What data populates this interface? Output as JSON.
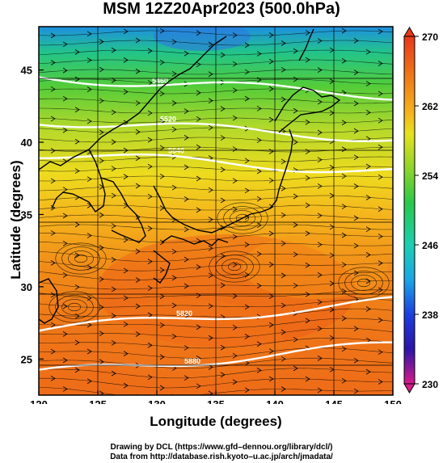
{
  "title": "MSM 12Z20Apr2023 (500.0hPa)",
  "x_axis": {
    "label": "Longitude (degrees)",
    "ticks": [
      "120",
      "125",
      "130",
      "135",
      "140",
      "145",
      "150"
    ],
    "range": [
      120,
      150
    ]
  },
  "y_axis": {
    "label": "Latitude  (degrees)",
    "ticks": [
      "25",
      "30",
      "35",
      "40",
      "45"
    ],
    "range": [
      22.5,
      48
    ]
  },
  "colorbar": {
    "labels": [
      "270",
      "262",
      "254",
      "246",
      "238",
      "230"
    ],
    "range": [
      230,
      270
    ],
    "colors": [
      "#d81a8a",
      "#2b14a8",
      "#1c3ee0",
      "#1aa6e6",
      "#19d0b2",
      "#28c94a",
      "#8fd42a",
      "#e6e21c",
      "#f5b41c",
      "#f07a18",
      "#e8381a"
    ]
  },
  "contours": [
    {
      "label": "5460",
      "lat": 44.5
    },
    {
      "label": "5520",
      "lat": 41.5
    },
    {
      "label": "5640",
      "lat": 39.2
    },
    {
      "label": "5820",
      "lat": 27.0
    },
    {
      "label": "5880",
      "lat": 24.0
    }
  ],
  "credits": [
    "Drawing by DCL (https://www.gfd–dennou.org/library/dcl/)",
    "Data from http://database.rish.kyoto–u.ac.jp/arch/jmadata/"
  ]
}
